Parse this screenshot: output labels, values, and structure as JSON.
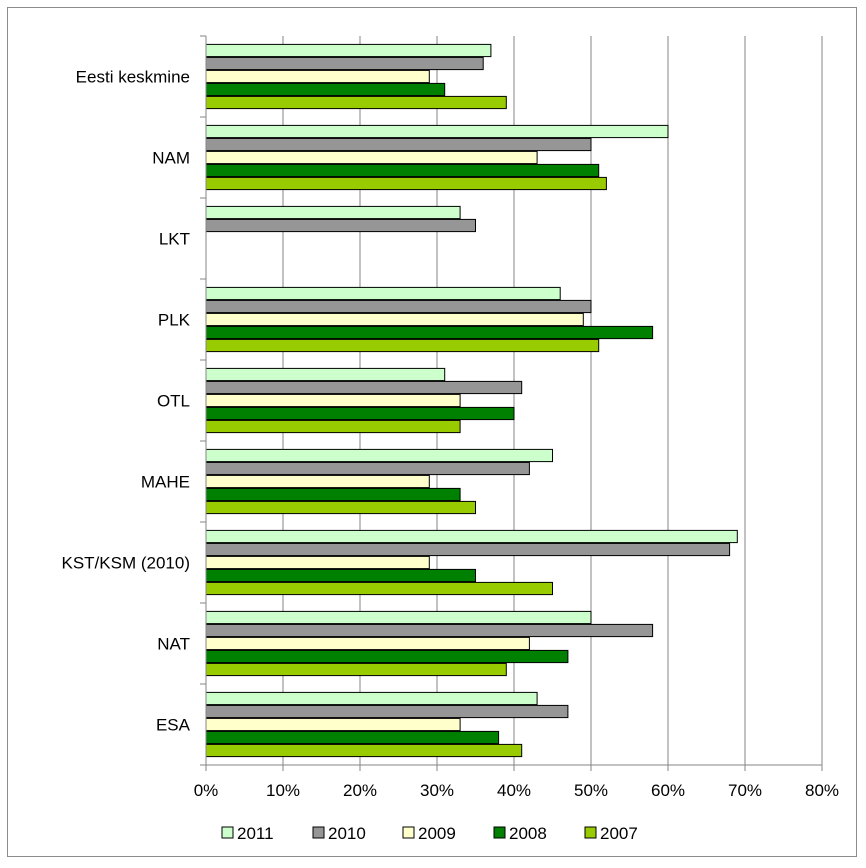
{
  "chart_data": {
    "type": "bar",
    "orientation": "horizontal",
    "title": "",
    "xlabel": "",
    "ylabel": "",
    "xlim": [
      0,
      80
    ],
    "x_ticks": [
      "0%",
      "10%",
      "20%",
      "30%",
      "40%",
      "50%",
      "60%",
      "70%",
      "80%"
    ],
    "categories": [
      "Eesti keskmine",
      "NAM",
      "LKT",
      "PLK",
      "OTL",
      "MAHE",
      "KST/KSM (2010)",
      "NAT",
      "ESA"
    ],
    "series": [
      {
        "name": "2011",
        "color": "#ccffcc",
        "values": [
          37,
          60,
          33,
          46,
          31,
          45,
          69,
          50,
          43
        ]
      },
      {
        "name": "2010",
        "color": "#969696",
        "values": [
          36,
          50,
          35,
          50,
          41,
          42,
          68,
          58,
          47
        ]
      },
      {
        "name": "2009",
        "color": "#ffffcc",
        "values": [
          29,
          43,
          null,
          49,
          33,
          29,
          29,
          42,
          33
        ]
      },
      {
        "name": "2008",
        "color": "#008000",
        "values": [
          31,
          51,
          null,
          58,
          40,
          33,
          35,
          47,
          38
        ]
      },
      {
        "name": "2007",
        "color": "#99cc00",
        "values": [
          39,
          52,
          null,
          51,
          33,
          35,
          45,
          39,
          41
        ]
      }
    ],
    "grid": true,
    "legend_position": "bottom"
  }
}
